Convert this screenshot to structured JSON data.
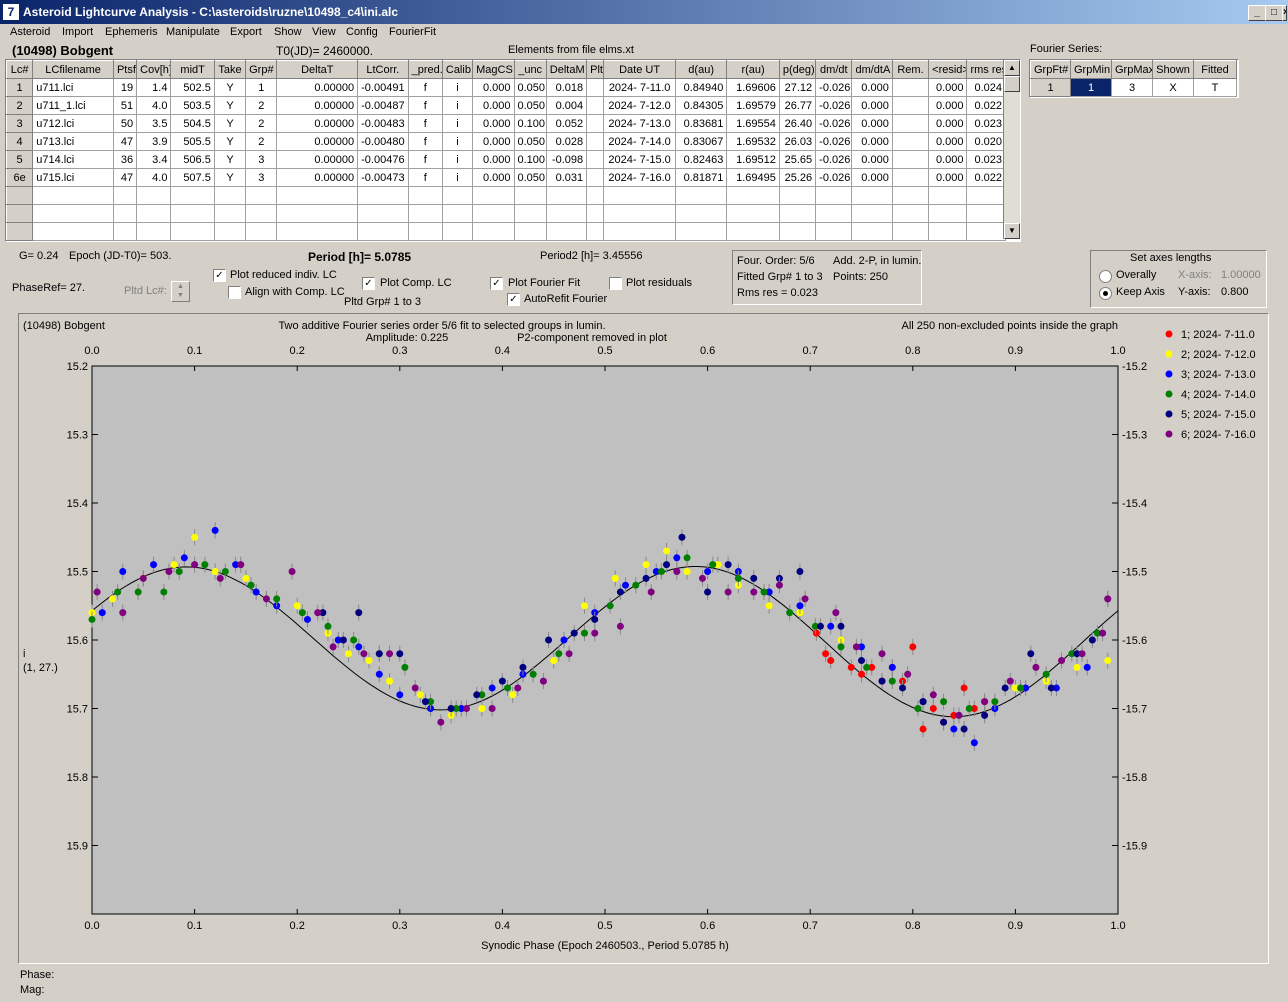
{
  "window": {
    "title": "Asteroid Lightcurve Analysis - C:\\asteroids\\ruzne\\10498_c4\\ini.alc",
    "icon_char": "7"
  },
  "menu": [
    "Asteroid",
    "Import",
    "Ephemeris",
    "Manipulate",
    "Export",
    "Show",
    "View",
    "Config",
    "FourierFit"
  ],
  "header": {
    "asteroid": "(10498) Bobgent",
    "t0": "T0(JD)= 2460000.",
    "elements": "Elements from file elms.xt"
  },
  "lc_table": {
    "columns": [
      "Lc#",
      "LCfilename",
      "Ptsf",
      "Cov[h]",
      "midT",
      "Take",
      "Grp#",
      "DeltaT",
      "LtCorr.",
      "_pred.",
      "Calib.",
      "MagCS",
      "_unc",
      "DeltaM",
      "Plt",
      "Date UT",
      "d(au)",
      "r(au)",
      "p(deg)",
      "dm/dt",
      "dm/dtA",
      "Rem.",
      "<resid>",
      "rms res"
    ],
    "rows": [
      [
        "1",
        "u711.lci",
        "19",
        "1.4",
        "502.5",
        "Y",
        "1",
        "0.00000",
        "-0.00491",
        "f",
        "i",
        "0.000",
        "0.050",
        "0.018",
        "",
        "2024- 7-11.0",
        "0.84940",
        "1.69606",
        "27.12",
        "-0.026",
        "0.000",
        "",
        "0.000",
        "0.024"
      ],
      [
        "2",
        "u711_1.lci",
        "51",
        "4.0",
        "503.5",
        "Y",
        "2",
        "0.00000",
        "-0.00487",
        "f",
        "i",
        "0.000",
        "0.050",
        "0.004",
        "",
        "2024- 7-12.0",
        "0.84305",
        "1.69579",
        "26.77",
        "-0.026",
        "0.000",
        "",
        "0.000",
        "0.022"
      ],
      [
        "3",
        "u712.lci",
        "50",
        "3.5",
        "504.5",
        "Y",
        "2",
        "0.00000",
        "-0.00483",
        "f",
        "i",
        "0.000",
        "0.100",
        "0.052",
        "",
        "2024- 7-13.0",
        "0.83681",
        "1.69554",
        "26.40",
        "-0.026",
        "0.000",
        "",
        "0.000",
        "0.023"
      ],
      [
        "4",
        "u713.lci",
        "47",
        "3.9",
        "505.5",
        "Y",
        "2",
        "0.00000",
        "-0.00480",
        "f",
        "i",
        "0.000",
        "0.050",
        "0.028",
        "",
        "2024- 7-14.0",
        "0.83067",
        "1.69532",
        "26.03",
        "-0.026",
        "0.000",
        "",
        "0.000",
        "0.020"
      ],
      [
        "5",
        "u714.lci",
        "36",
        "3.4",
        "506.5",
        "Y",
        "3",
        "0.00000",
        "-0.00476",
        "f",
        "i",
        "0.000",
        "0.100",
        "-0.098",
        "",
        "2024- 7-15.0",
        "0.82463",
        "1.69512",
        "25.65",
        "-0.026",
        "0.000",
        "",
        "0.000",
        "0.023"
      ],
      [
        "6e",
        "u715.lci",
        "47",
        "4.0",
        "507.5",
        "Y",
        "3",
        "0.00000",
        "-0.00473",
        "f",
        "i",
        "0.000",
        "0.050",
        "0.031",
        "",
        "2024- 7-16.0",
        "0.81871",
        "1.69495",
        "25.26",
        "-0.026",
        "0.000",
        "",
        "0.000",
        "0.022"
      ]
    ],
    "empty_rows": 3
  },
  "fourier": {
    "title": "Fourier Series:",
    "columns": [
      "GrpFt#",
      "GrpMin",
      "GrpMax",
      "Shown",
      "Fitted"
    ],
    "row": [
      "1",
      "1",
      "3",
      "X",
      "T"
    ]
  },
  "params": {
    "g": "G= 0.24",
    "epoch": "Epoch (JD-T0)= 503.",
    "period": "Period [h]= 5.0785",
    "period2": "Period2 [h]= 3.45556",
    "phaseref": "PhaseRef= 27.",
    "pltd_lc": "Pltd Lc#:",
    "plot_reduced": "Plot reduced indiv. LC",
    "align_comp": "Align with Comp. LC",
    "plot_comp": "Plot Comp. LC",
    "pltd_grp": "Pltd Grp#  1   to   3",
    "plot_fourier": "Plot Fourier Fit",
    "autorefit": "AutoRefit Fourier",
    "plot_residuals": "Plot residuals",
    "check": "✓"
  },
  "info": {
    "order": "Four. Order:  5/6",
    "add": "Add. 2-P, in lumin.",
    "fitted": "Fitted Grp# 1 to 3",
    "points": "Points: 250",
    "rms": "Rms res      = 0.023"
  },
  "axes_box": {
    "title": "Set axes lengths",
    "overally": "Overally",
    "keep": "Keep Axis",
    "xaxis_label": "X-axis:",
    "xaxis_value": "1.00000",
    "yaxis_label": "Y-axis:",
    "yaxis_value": "0.800"
  },
  "plot_header": {
    "name": "(10498) Bobgent",
    "line1": "Two additive Fourier series order 5/6 fit to selected groups in lumin.",
    "amplitude": "Amplitude: 0.225",
    "p2": "P2-component removed in plot",
    "points_note": "All 250 non-excluded points inside the graph",
    "y_axis_label1": "i",
    "y_axis_label2": "(1, 27.)"
  },
  "chart_data": {
    "type": "scatter",
    "xlabel": "Synodic Phase (Epoch 2460503., Period 5.0785 h)",
    "xlim": [
      0,
      1
    ],
    "ylim": [
      15.2,
      16.0
    ],
    "y_inverted": true,
    "x_ticks": [
      0.0,
      0.1,
      0.2,
      0.3,
      0.4,
      0.5,
      0.6,
      0.7,
      0.8,
      0.9,
      1.0
    ],
    "y_ticks": [
      15.2,
      15.3,
      15.4,
      15.5,
      15.6,
      15.7,
      15.8,
      15.9
    ],
    "fourier_fit": {
      "mean": 15.6,
      "amplitude": 0.107,
      "extra": 0.005,
      "color": "#000000"
    },
    "series": [
      {
        "name": "1; 2024- 7-11.0",
        "color": "#ff0000",
        "points": [
          [
            0.706,
            15.59
          ],
          [
            0.715,
            15.62
          ],
          [
            0.72,
            15.63
          ],
          [
            0.74,
            15.64
          ],
          [
            0.75,
            15.65
          ],
          [
            0.76,
            15.64
          ],
          [
            0.77,
            15.66
          ],
          [
            0.78,
            15.64
          ],
          [
            0.79,
            15.66
          ],
          [
            0.8,
            15.61
          ],
          [
            0.81,
            15.73
          ],
          [
            0.82,
            15.7
          ],
          [
            0.83,
            15.72
          ],
          [
            0.84,
            15.71
          ],
          [
            0.85,
            15.67
          ],
          [
            0.86,
            15.7
          ],
          [
            0.87,
            15.69
          ]
        ]
      },
      {
        "name": "2; 2024- 7-12.0",
        "color": "#ffff00",
        "points": [
          [
            0.0,
            15.56
          ],
          [
            0.02,
            15.54
          ],
          [
            0.05,
            15.51
          ],
          [
            0.08,
            15.49
          ],
          [
            0.1,
            15.45
          ],
          [
            0.12,
            15.5
          ],
          [
            0.15,
            15.51
          ],
          [
            0.17,
            15.54
          ],
          [
            0.2,
            15.55
          ],
          [
            0.23,
            15.59
          ],
          [
            0.25,
            15.62
          ],
          [
            0.27,
            15.63
          ],
          [
            0.29,
            15.66
          ],
          [
            0.32,
            15.68
          ],
          [
            0.35,
            15.71
          ],
          [
            0.38,
            15.7
          ],
          [
            0.41,
            15.68
          ],
          [
            0.45,
            15.63
          ],
          [
            0.48,
            15.55
          ],
          [
            0.51,
            15.51
          ],
          [
            0.54,
            15.49
          ],
          [
            0.56,
            15.47
          ],
          [
            0.58,
            15.5
          ],
          [
            0.61,
            15.49
          ],
          [
            0.63,
            15.52
          ],
          [
            0.66,
            15.55
          ],
          [
            0.69,
            15.56
          ],
          [
            0.73,
            15.6
          ],
          [
            0.9,
            15.67
          ],
          [
            0.93,
            15.66
          ],
          [
            0.96,
            15.64
          ],
          [
            0.99,
            15.63
          ]
        ]
      },
      {
        "name": "3; 2024- 7-13.0",
        "color": "#0000ff",
        "points": [
          [
            0.01,
            15.56
          ],
          [
            0.03,
            15.5
          ],
          [
            0.06,
            15.49
          ],
          [
            0.09,
            15.48
          ],
          [
            0.12,
            15.44
          ],
          [
            0.14,
            15.49
          ],
          [
            0.16,
            15.53
          ],
          [
            0.18,
            15.55
          ],
          [
            0.21,
            15.57
          ],
          [
            0.24,
            15.6
          ],
          [
            0.26,
            15.61
          ],
          [
            0.28,
            15.65
          ],
          [
            0.3,
            15.68
          ],
          [
            0.33,
            15.7
          ],
          [
            0.36,
            15.7
          ],
          [
            0.39,
            15.67
          ],
          [
            0.42,
            15.65
          ],
          [
            0.46,
            15.6
          ],
          [
            0.49,
            15.56
          ],
          [
            0.52,
            15.52
          ],
          [
            0.55,
            15.5
          ],
          [
            0.57,
            15.48
          ],
          [
            0.6,
            15.5
          ],
          [
            0.63,
            15.5
          ],
          [
            0.66,
            15.53
          ],
          [
            0.69,
            15.55
          ],
          [
            0.72,
            15.58
          ],
          [
            0.75,
            15.61
          ],
          [
            0.78,
            15.64
          ],
          [
            0.81,
            15.69
          ],
          [
            0.84,
            15.73
          ],
          [
            0.86,
            15.75
          ],
          [
            0.88,
            15.7
          ],
          [
            0.91,
            15.67
          ],
          [
            0.94,
            15.67
          ],
          [
            0.97,
            15.64
          ]
        ]
      },
      {
        "name": "4; 2024- 7-14.0",
        "color": "#008000",
        "points": [
          [
            0.0,
            15.57
          ],
          [
            0.025,
            15.53
          ],
          [
            0.045,
            15.53
          ],
          [
            0.07,
            15.53
          ],
          [
            0.085,
            15.5
          ],
          [
            0.11,
            15.49
          ],
          [
            0.13,
            15.5
          ],
          [
            0.155,
            15.52
          ],
          [
            0.18,
            15.54
          ],
          [
            0.205,
            15.56
          ],
          [
            0.23,
            15.58
          ],
          [
            0.255,
            15.6
          ],
          [
            0.28,
            15.62
          ],
          [
            0.305,
            15.64
          ],
          [
            0.33,
            15.69
          ],
          [
            0.355,
            15.7
          ],
          [
            0.38,
            15.68
          ],
          [
            0.405,
            15.67
          ],
          [
            0.43,
            15.65
          ],
          [
            0.455,
            15.62
          ],
          [
            0.48,
            15.59
          ],
          [
            0.505,
            15.55
          ],
          [
            0.53,
            15.52
          ],
          [
            0.555,
            15.5
          ],
          [
            0.58,
            15.48
          ],
          [
            0.605,
            15.49
          ],
          [
            0.63,
            15.51
          ],
          [
            0.655,
            15.53
          ],
          [
            0.68,
            15.56
          ],
          [
            0.705,
            15.58
          ],
          [
            0.73,
            15.61
          ],
          [
            0.755,
            15.64
          ],
          [
            0.78,
            15.66
          ],
          [
            0.805,
            15.7
          ],
          [
            0.83,
            15.69
          ],
          [
            0.855,
            15.7
          ],
          [
            0.88,
            15.69
          ],
          [
            0.905,
            15.67
          ],
          [
            0.93,
            15.65
          ],
          [
            0.955,
            15.62
          ],
          [
            0.98,
            15.59
          ],
          [
            0.99,
            15.54
          ]
        ]
      },
      {
        "name": "5; 2024- 7-15.0",
        "color": "#000080",
        "points": [
          [
            0.225,
            15.56
          ],
          [
            0.245,
            15.6
          ],
          [
            0.26,
            15.56
          ],
          [
            0.28,
            15.62
          ],
          [
            0.3,
            15.62
          ],
          [
            0.325,
            15.69
          ],
          [
            0.35,
            15.7
          ],
          [
            0.375,
            15.68
          ],
          [
            0.4,
            15.66
          ],
          [
            0.42,
            15.64
          ],
          [
            0.445,
            15.6
          ],
          [
            0.47,
            15.59
          ],
          [
            0.49,
            15.57
          ],
          [
            0.515,
            15.53
          ],
          [
            0.54,
            15.51
          ],
          [
            0.56,
            15.49
          ],
          [
            0.575,
            15.45
          ],
          [
            0.6,
            15.53
          ],
          [
            0.62,
            15.49
          ],
          [
            0.645,
            15.51
          ],
          [
            0.67,
            15.51
          ],
          [
            0.69,
            15.5
          ],
          [
            0.71,
            15.58
          ],
          [
            0.73,
            15.58
          ],
          [
            0.75,
            15.63
          ],
          [
            0.77,
            15.66
          ],
          [
            0.79,
            15.67
          ],
          [
            0.81,
            15.69
          ],
          [
            0.83,
            15.72
          ],
          [
            0.85,
            15.73
          ],
          [
            0.87,
            15.71
          ],
          [
            0.89,
            15.67
          ],
          [
            0.915,
            15.62
          ],
          [
            0.935,
            15.67
          ],
          [
            0.96,
            15.62
          ],
          [
            0.975,
            15.6
          ]
        ]
      },
      {
        "name": "6; 2024- 7-16.0",
        "color": "#800080",
        "points": [
          [
            0.005,
            15.53
          ],
          [
            0.03,
            15.56
          ],
          [
            0.05,
            15.51
          ],
          [
            0.075,
            15.5
          ],
          [
            0.1,
            15.49
          ],
          [
            0.125,
            15.51
          ],
          [
            0.145,
            15.49
          ],
          [
            0.17,
            15.54
          ],
          [
            0.195,
            15.5
          ],
          [
            0.22,
            15.56
          ],
          [
            0.235,
            15.61
          ],
          [
            0.265,
            15.62
          ],
          [
            0.29,
            15.62
          ],
          [
            0.315,
            15.67
          ],
          [
            0.34,
            15.72
          ],
          [
            0.365,
            15.7
          ],
          [
            0.39,
            15.7
          ],
          [
            0.415,
            15.67
          ],
          [
            0.44,
            15.66
          ],
          [
            0.465,
            15.62
          ],
          [
            0.49,
            15.59
          ],
          [
            0.515,
            15.58
          ],
          [
            0.545,
            15.53
          ],
          [
            0.57,
            15.5
          ],
          [
            0.595,
            15.51
          ],
          [
            0.62,
            15.53
          ],
          [
            0.645,
            15.53
          ],
          [
            0.67,
            15.52
          ],
          [
            0.695,
            15.54
          ],
          [
            0.725,
            15.56
          ],
          [
            0.745,
            15.61
          ],
          [
            0.77,
            15.62
          ],
          [
            0.795,
            15.65
          ],
          [
            0.82,
            15.68
          ],
          [
            0.845,
            15.71
          ],
          [
            0.87,
            15.69
          ],
          [
            0.895,
            15.66
          ],
          [
            0.92,
            15.64
          ],
          [
            0.945,
            15.63
          ],
          [
            0.965,
            15.62
          ],
          [
            0.985,
            15.59
          ],
          [
            0.99,
            15.54
          ]
        ]
      }
    ]
  },
  "status": {
    "phase": "Phase:",
    "mag": "Mag:"
  }
}
